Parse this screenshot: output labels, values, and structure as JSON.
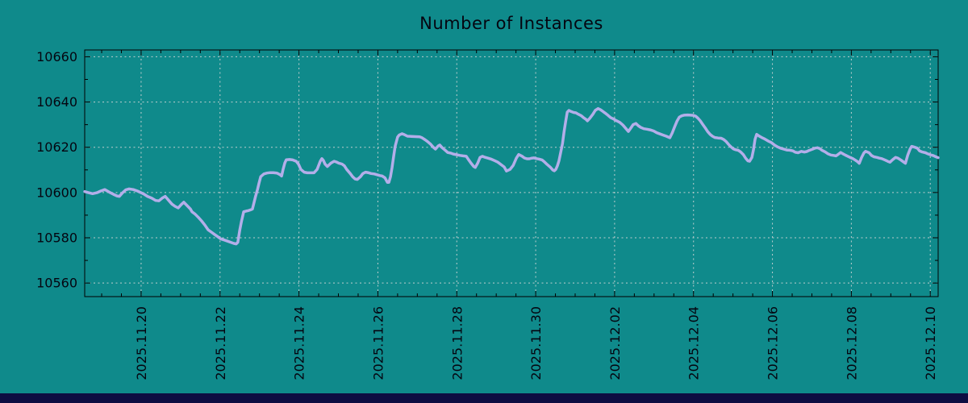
{
  "window": {
    "bg_color": "#0f8a8b",
    "bottom_bar_color": "#0d0d42",
    "text_color": "#050510",
    "border_color": "#000000"
  },
  "chart_data": {
    "type": "line",
    "title": "Number of Instances",
    "legend": null,
    "grid": true,
    "grid_color": "#c9d2d2",
    "series_color": "#b3aee9",
    "series_width": 3.5,
    "x_axis": {
      "unit": "days since 2025-11-20",
      "tick_labels": [
        "2025.11.20",
        "2025.11.22",
        "2025.11.24",
        "2025.11.26",
        "2025.11.28",
        "2025.11.30",
        "2025.12.02",
        "2025.12.04",
        "2025.12.06",
        "2025.12.08",
        "2025.12.10"
      ],
      "tick_days": [
        0,
        2,
        4,
        6,
        8,
        10,
        12,
        14,
        16,
        18,
        20
      ],
      "minor_tick_step_days": 0.5,
      "range_days": [
        -1.43,
        20.2
      ]
    },
    "y_axis": {
      "tick_labels": [
        "10560",
        "10580",
        "10600",
        "10620",
        "10640",
        "10660"
      ],
      "ticks": [
        10560,
        10580,
        10600,
        10620,
        10640,
        10660
      ],
      "minor_tick_step": 10,
      "range": [
        10554,
        10663
      ]
    },
    "points": [
      [
        -1.43,
        10600.4
      ],
      [
        -1.33,
        10599.9
      ],
      [
        -1.23,
        10599.5
      ],
      [
        -1.12,
        10599.9
      ],
      [
        -1.02,
        10600.7
      ],
      [
        -0.92,
        10601.3
      ],
      [
        -0.86,
        10600.7
      ],
      [
        -0.78,
        10599.9
      ],
      [
        -0.7,
        10599.2
      ],
      [
        -0.61,
        10598.5
      ],
      [
        -0.55,
        10598.3
      ],
      [
        -0.47,
        10599.9
      ],
      [
        -0.39,
        10601.2
      ],
      [
        -0.31,
        10601.6
      ],
      [
        -0.2,
        10601.3
      ],
      [
        -0.1,
        10600.7
      ],
      [
        0.0,
        10599.9
      ],
      [
        0.08,
        10599.2
      ],
      [
        0.16,
        10598.3
      ],
      [
        0.27,
        10597.5
      ],
      [
        0.37,
        10596.5
      ],
      [
        0.45,
        10596.3
      ],
      [
        0.53,
        10597.5
      ],
      [
        0.61,
        10598.3
      ],
      [
        0.7,
        10596.5
      ],
      [
        0.78,
        10594.9
      ],
      [
        0.86,
        10593.9
      ],
      [
        0.94,
        10593.2
      ],
      [
        1.02,
        10594.7
      ],
      [
        1.08,
        10595.7
      ],
      [
        1.17,
        10594.1
      ],
      [
        1.25,
        10592.7
      ],
      [
        1.29,
        10591.5
      ],
      [
        1.37,
        10590.4
      ],
      [
        1.45,
        10589.0
      ],
      [
        1.53,
        10587.5
      ],
      [
        1.62,
        10585.5
      ],
      [
        1.7,
        10583.5
      ],
      [
        1.78,
        10582.5
      ],
      [
        1.86,
        10581.5
      ],
      [
        1.94,
        10580.5
      ],
      [
        2.02,
        10579.5
      ],
      [
        2.11,
        10579.0
      ],
      [
        2.19,
        10578.5
      ],
      [
        2.27,
        10578.0
      ],
      [
        2.35,
        10577.5
      ],
      [
        2.41,
        10577.3
      ],
      [
        2.45,
        10578.0
      ],
      [
        2.5,
        10583.3
      ],
      [
        2.54,
        10587.0
      ],
      [
        2.6,
        10591.5
      ],
      [
        2.66,
        10591.8
      ],
      [
        2.72,
        10592.0
      ],
      [
        2.78,
        10592.4
      ],
      [
        2.82,
        10592.7
      ],
      [
        2.86,
        10595.4
      ],
      [
        2.9,
        10598.3
      ],
      [
        2.95,
        10601.3
      ],
      [
        2.99,
        10604.3
      ],
      [
        3.03,
        10607.0
      ],
      [
        3.11,
        10608.2
      ],
      [
        3.19,
        10608.6
      ],
      [
        3.27,
        10608.8
      ],
      [
        3.35,
        10608.8
      ],
      [
        3.44,
        10608.6
      ],
      [
        3.52,
        10607.9
      ],
      [
        3.56,
        10607.3
      ],
      [
        3.6,
        10610.3
      ],
      [
        3.64,
        10613.0
      ],
      [
        3.68,
        10614.5
      ],
      [
        3.76,
        10614.6
      ],
      [
        3.84,
        10614.4
      ],
      [
        3.93,
        10613.8
      ],
      [
        3.99,
        10612.5
      ],
      [
        4.05,
        10610.2
      ],
      [
        4.13,
        10609.0
      ],
      [
        4.21,
        10608.7
      ],
      [
        4.29,
        10608.7
      ],
      [
        4.38,
        10608.7
      ],
      [
        4.46,
        10610.2
      ],
      [
        4.54,
        10613.8
      ],
      [
        4.58,
        10615.0
      ],
      [
        4.62,
        10614.2
      ],
      [
        4.66,
        10612.6
      ],
      [
        4.72,
        10611.5
      ],
      [
        4.81,
        10613.0
      ],
      [
        4.89,
        10613.8
      ],
      [
        4.95,
        10613.5
      ],
      [
        5.01,
        10613.0
      ],
      [
        5.09,
        10612.6
      ],
      [
        5.15,
        10611.8
      ],
      [
        5.21,
        10610.2
      ],
      [
        5.3,
        10608.4
      ],
      [
        5.36,
        10607.0
      ],
      [
        5.42,
        10606.0
      ],
      [
        5.48,
        10605.8
      ],
      [
        5.56,
        10607.0
      ],
      [
        5.62,
        10608.4
      ],
      [
        5.69,
        10609.0
      ],
      [
        5.77,
        10608.7
      ],
      [
        5.83,
        10608.4
      ],
      [
        5.91,
        10608.2
      ],
      [
        5.97,
        10607.9
      ],
      [
        6.05,
        10607.5
      ],
      [
        6.11,
        10607.3
      ],
      [
        6.18,
        10606.5
      ],
      [
        6.24,
        10604.5
      ],
      [
        6.28,
        10604.5
      ],
      [
        6.32,
        10607.0
      ],
      [
        6.36,
        10611.0
      ],
      [
        6.4,
        10616.0
      ],
      [
        6.44,
        10620.5
      ],
      [
        6.5,
        10624.5
      ],
      [
        6.54,
        10625.4
      ],
      [
        6.61,
        10626.0
      ],
      [
        6.67,
        10625.6
      ],
      [
        6.75,
        10624.9
      ],
      [
        6.85,
        10624.8
      ],
      [
        6.95,
        10624.7
      ],
      [
        7.06,
        10624.6
      ],
      [
        7.12,
        10624.2
      ],
      [
        7.2,
        10623.3
      ],
      [
        7.26,
        10622.5
      ],
      [
        7.34,
        10621.3
      ],
      [
        7.4,
        10620.1
      ],
      [
        7.46,
        10619.2
      ],
      [
        7.53,
        10620.6
      ],
      [
        7.57,
        10621.0
      ],
      [
        7.63,
        10619.8
      ],
      [
        7.71,
        10618.6
      ],
      [
        7.77,
        10617.7
      ],
      [
        7.85,
        10617.4
      ],
      [
        7.91,
        10617.0
      ],
      [
        8.0,
        10616.7
      ],
      [
        8.08,
        10616.4
      ],
      [
        8.16,
        10616.2
      ],
      [
        8.24,
        10616.0
      ],
      [
        8.3,
        10614.5
      ],
      [
        8.36,
        10613.0
      ],
      [
        8.43,
        10611.5
      ],
      [
        8.47,
        10611.1
      ],
      [
        8.53,
        10613.0
      ],
      [
        8.59,
        10615.5
      ],
      [
        8.65,
        10616.0
      ],
      [
        8.71,
        10615.6
      ],
      [
        8.79,
        10615.2
      ],
      [
        8.88,
        10614.7
      ],
      [
        8.96,
        10614.1
      ],
      [
        9.04,
        10613.4
      ],
      [
        9.12,
        10612.4
      ],
      [
        9.2,
        10611.3
      ],
      [
        9.26,
        10609.5
      ],
      [
        9.35,
        10610.2
      ],
      [
        9.43,
        10612.0
      ],
      [
        9.51,
        10615.2
      ],
      [
        9.57,
        10616.8
      ],
      [
        9.65,
        10616.1
      ],
      [
        9.71,
        10615.3
      ],
      [
        9.78,
        10614.9
      ],
      [
        9.84,
        10614.9
      ],
      [
        9.9,
        10615.2
      ],
      [
        9.96,
        10615.3
      ],
      [
        10.02,
        10615.0
      ],
      [
        10.08,
        10614.8
      ],
      [
        10.16,
        10614.4
      ],
      [
        10.22,
        10613.6
      ],
      [
        10.29,
        10612.4
      ],
      [
        10.37,
        10611.2
      ],
      [
        10.43,
        10610.0
      ],
      [
        10.47,
        10609.6
      ],
      [
        10.51,
        10610.2
      ],
      [
        10.55,
        10611.8
      ],
      [
        10.59,
        10614.0
      ],
      [
        10.63,
        10617.4
      ],
      [
        10.68,
        10621.6
      ],
      [
        10.72,
        10627.0
      ],
      [
        10.76,
        10631.5
      ],
      [
        10.8,
        10635.5
      ],
      [
        10.84,
        10636.3
      ],
      [
        10.9,
        10635.8
      ],
      [
        10.96,
        10635.4
      ],
      [
        11.02,
        10635.2
      ],
      [
        11.08,
        10634.6
      ],
      [
        11.15,
        10634.0
      ],
      [
        11.21,
        10633.1
      ],
      [
        11.27,
        10632.4
      ],
      [
        11.31,
        10631.7
      ],
      [
        11.37,
        10632.8
      ],
      [
        11.45,
        10634.6
      ],
      [
        11.51,
        10636.3
      ],
      [
        11.58,
        10637.1
      ],
      [
        11.64,
        10636.6
      ],
      [
        11.7,
        10635.9
      ],
      [
        11.76,
        10635.1
      ],
      [
        11.84,
        10634.0
      ],
      [
        11.9,
        10633.1
      ],
      [
        11.96,
        10632.6
      ],
      [
        12.04,
        10631.8
      ],
      [
        12.13,
        10631.0
      ],
      [
        12.21,
        10629.8
      ],
      [
        12.29,
        10628.2
      ],
      [
        12.35,
        10627.0
      ],
      [
        12.41,
        10628.5
      ],
      [
        12.47,
        10630.0
      ],
      [
        12.54,
        10630.5
      ],
      [
        12.6,
        10629.5
      ],
      [
        12.66,
        10628.8
      ],
      [
        12.74,
        10628.2
      ],
      [
        12.82,
        10628.0
      ],
      [
        12.9,
        10627.7
      ],
      [
        12.99,
        10627.2
      ],
      [
        13.07,
        10626.4
      ],
      [
        13.15,
        10625.9
      ],
      [
        13.23,
        10625.4
      ],
      [
        13.31,
        10624.9
      ],
      [
        13.4,
        10624.2
      ],
      [
        13.46,
        10626.3
      ],
      [
        13.52,
        10629.0
      ],
      [
        13.58,
        10631.5
      ],
      [
        13.64,
        10633.3
      ],
      [
        13.7,
        10633.9
      ],
      [
        13.76,
        10634.2
      ],
      [
        13.85,
        10634.3
      ],
      [
        13.93,
        10634.2
      ],
      [
        13.99,
        10634.1
      ],
      [
        14.05,
        10633.8
      ],
      [
        14.11,
        10632.9
      ],
      [
        14.17,
        10631.7
      ],
      [
        14.23,
        10630.2
      ],
      [
        14.3,
        10628.5
      ],
      [
        14.36,
        10626.9
      ],
      [
        14.42,
        10625.7
      ],
      [
        14.48,
        10624.9
      ],
      [
        14.54,
        10624.3
      ],
      [
        14.62,
        10624.1
      ],
      [
        14.7,
        10624.0
      ],
      [
        14.76,
        10623.5
      ],
      [
        14.83,
        10622.5
      ],
      [
        14.89,
        10621.2
      ],
      [
        14.95,
        10620.2
      ],
      [
        15.01,
        10619.3
      ],
      [
        15.07,
        10618.9
      ],
      [
        15.13,
        10618.7
      ],
      [
        15.19,
        10618.0
      ],
      [
        15.26,
        10616.8
      ],
      [
        15.32,
        10615.2
      ],
      [
        15.38,
        10614.0
      ],
      [
        15.42,
        10613.8
      ],
      [
        15.48,
        10615.5
      ],
      [
        15.52,
        10619.0
      ],
      [
        15.56,
        10623.5
      ],
      [
        15.6,
        10625.7
      ],
      [
        15.66,
        10625.0
      ],
      [
        15.72,
        10624.4
      ],
      [
        15.81,
        10623.6
      ],
      [
        15.89,
        10622.8
      ],
      [
        15.97,
        10622.1
      ],
      [
        16.05,
        10621.0
      ],
      [
        16.13,
        10620.2
      ],
      [
        16.22,
        10619.5
      ],
      [
        16.3,
        10619.1
      ],
      [
        16.36,
        10618.8
      ],
      [
        16.44,
        10618.7
      ],
      [
        16.52,
        10618.4
      ],
      [
        16.58,
        10617.8
      ],
      [
        16.65,
        10617.6
      ],
      [
        16.73,
        10618.2
      ],
      [
        16.81,
        10617.9
      ],
      [
        16.87,
        10618.1
      ],
      [
        16.93,
        10618.6
      ],
      [
        17.02,
        10619.2
      ],
      [
        17.08,
        10619.6
      ],
      [
        17.14,
        10619.8
      ],
      [
        17.2,
        10619.4
      ],
      [
        17.26,
        10618.6
      ],
      [
        17.34,
        10617.9
      ],
      [
        17.4,
        10617.2
      ],
      [
        17.48,
        10616.6
      ],
      [
        17.55,
        10616.4
      ],
      [
        17.61,
        10616.2
      ],
      [
        17.67,
        10616.9
      ],
      [
        17.73,
        10617.7
      ],
      [
        17.79,
        10617.1
      ],
      [
        17.85,
        10616.5
      ],
      [
        17.91,
        10616.0
      ],
      [
        17.98,
        10615.4
      ],
      [
        18.04,
        10615.0
      ],
      [
        18.1,
        10614.3
      ],
      [
        18.16,
        10613.6
      ],
      [
        18.2,
        10612.9
      ],
      [
        18.26,
        10615.5
      ],
      [
        18.32,
        10617.5
      ],
      [
        18.36,
        10618.2
      ],
      [
        18.45,
        10617.6
      ],
      [
        18.51,
        10616.4
      ],
      [
        18.57,
        10615.8
      ],
      [
        18.65,
        10615.5
      ],
      [
        18.71,
        10615.2
      ],
      [
        18.77,
        10615.0
      ],
      [
        18.86,
        10614.3
      ],
      [
        18.92,
        10613.8
      ],
      [
        18.98,
        10613.4
      ],
      [
        19.04,
        10614.4
      ],
      [
        19.12,
        10615.5
      ],
      [
        19.18,
        10615.2
      ],
      [
        19.26,
        10614.3
      ],
      [
        19.33,
        10613.4
      ],
      [
        19.37,
        10612.9
      ],
      [
        19.43,
        10616.5
      ],
      [
        19.49,
        10619.3
      ],
      [
        19.53,
        10620.4
      ],
      [
        19.59,
        10620.1
      ],
      [
        19.67,
        10619.6
      ],
      [
        19.73,
        10618.4
      ],
      [
        19.8,
        10617.9
      ],
      [
        19.88,
        10617.6
      ],
      [
        19.94,
        10617.1
      ],
      [
        20.0,
        10616.7
      ],
      [
        20.08,
        10616.3
      ],
      [
        20.14,
        10615.8
      ],
      [
        20.2,
        10615.4
      ]
    ]
  }
}
